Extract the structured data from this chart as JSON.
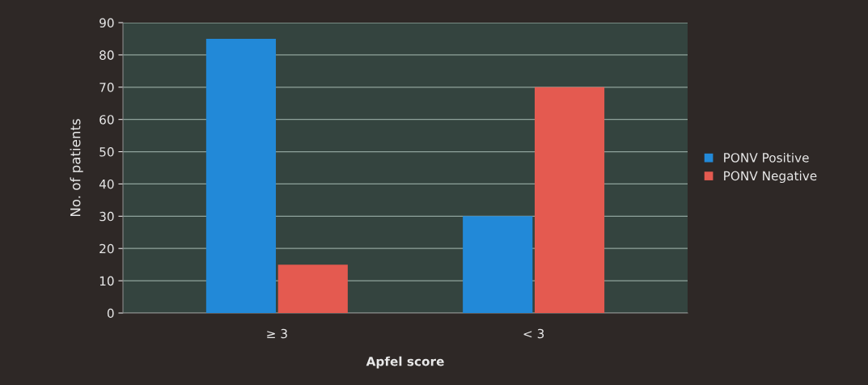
{
  "chart_data": {
    "type": "bar",
    "xlabel": "Apfel score",
    "ylabel": "No. of patients",
    "categories": [
      "≥ 3",
      "< 3"
    ],
    "series": [
      {
        "name": "PONV Positive",
        "color": "#2289d8",
        "values": [
          85,
          30
        ]
      },
      {
        "name": "PONV Negative",
        "color": "#e45a50",
        "values": [
          15,
          70
        ]
      }
    ],
    "ylim": [
      0,
      90
    ],
    "yticks": [
      0,
      10,
      20,
      30,
      40,
      50,
      60,
      70,
      80,
      90
    ],
    "grid": "y",
    "legend": "right"
  }
}
